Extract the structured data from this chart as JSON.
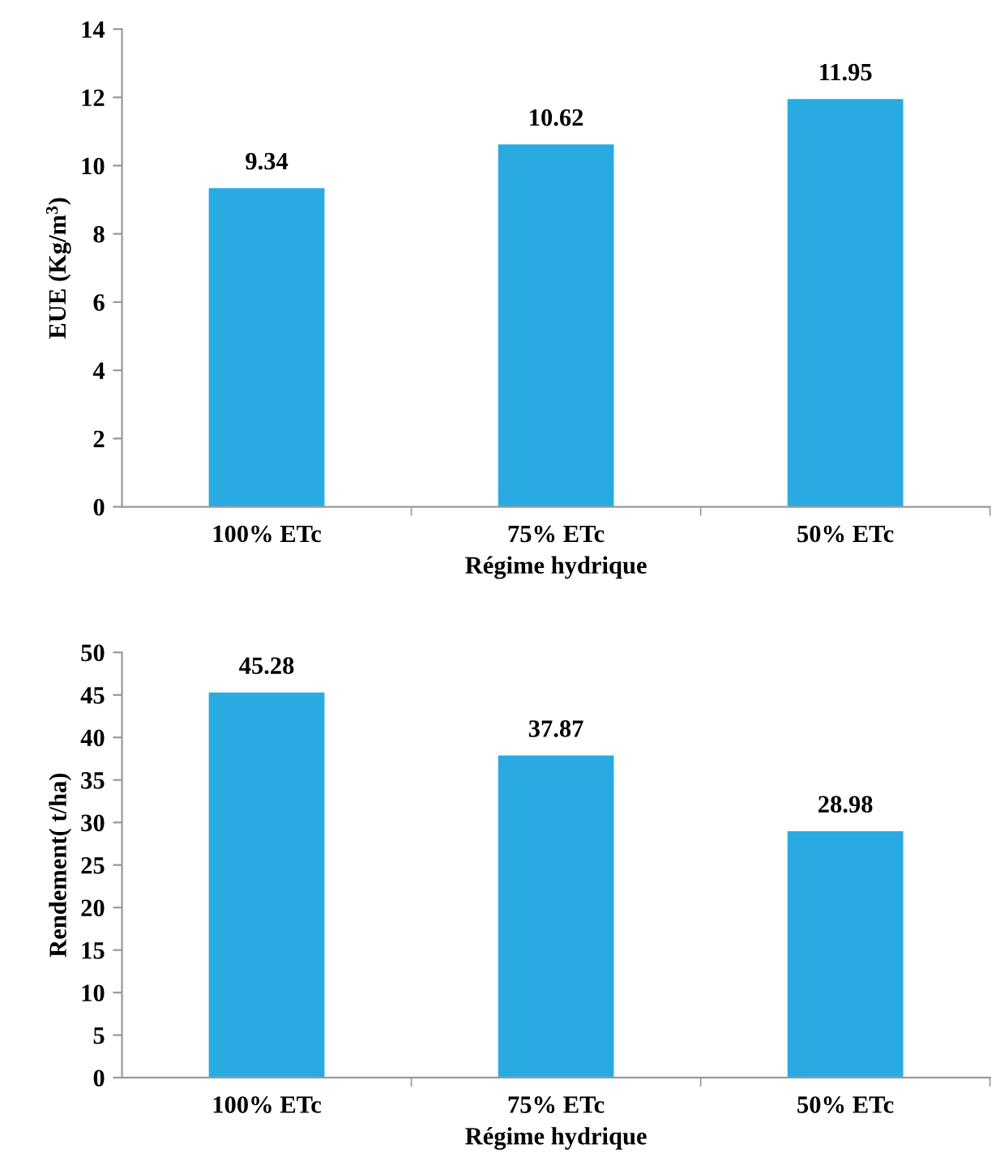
{
  "chart_data": [
    {
      "type": "bar",
      "categories": [
        "100% ETc",
        "75% ETc",
        "50% ETc"
      ],
      "values": [
        9.34,
        10.62,
        11.95
      ],
      "color": "#29abe2",
      "xlabel": "Régime hydrique",
      "ylabel": "EUE (Kg/m$^{3}$)",
      "ylim": [
        0,
        14
      ],
      "yticks": [
        0,
        2,
        4,
        6,
        8,
        10,
        12,
        14
      ],
      "data_labels": true,
      "grid": false,
      "legend": false
    },
    {
      "type": "bar",
      "categories": [
        "100% ETc",
        "75% ETc",
        "50% ETc"
      ],
      "values": [
        45.28,
        37.87,
        28.98
      ],
      "color": "#29abe2",
      "xlabel": "Régime hydrique",
      "ylabel": "Rendement( t/ha)",
      "ylim": [
        0,
        50
      ],
      "yticks": [
        0,
        5,
        10,
        15,
        20,
        25,
        30,
        35,
        40,
        45,
        50
      ],
      "data_labels": true,
      "grid": false,
      "legend": false
    }
  ]
}
